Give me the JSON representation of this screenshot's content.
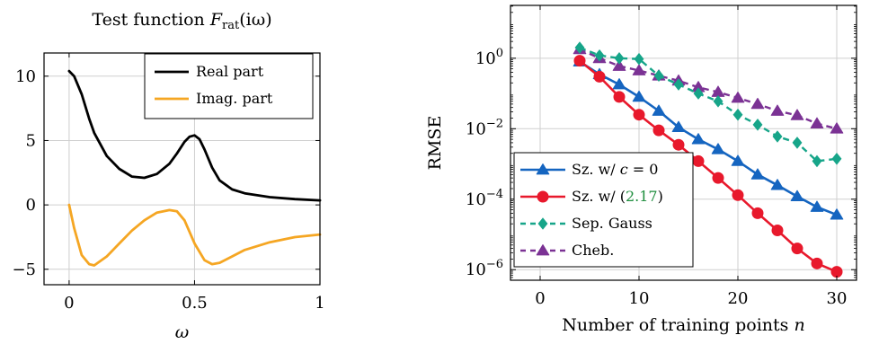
{
  "colors": {
    "real": "#000000",
    "imag": "#f5a623",
    "sz_c0": "#1565c0",
    "sz_217": "#e8192c",
    "sep_gauss": "#17a589",
    "cheb": "#7b3294",
    "ref_link": "#1e8e3e"
  },
  "chart_data": [
    {
      "type": "line",
      "title_prefix": "Test function ",
      "title_math": "F",
      "title_sub": "rat",
      "title_suffix": "(iω)",
      "xlabel": "ω",
      "xlim": [
        -0.1,
        1.0
      ],
      "ylim": [
        -6.2,
        11.8
      ],
      "xticks": [
        0,
        0.5,
        1
      ],
      "xtick_labels": [
        "0",
        "0.5",
        "1"
      ],
      "yticks": [
        -5,
        0,
        5,
        10
      ],
      "ytick_labels": [
        "−5",
        "0",
        "5",
        "10"
      ],
      "grid": true,
      "legend_position": "top-right",
      "series": [
        {
          "name": "Real part",
          "x": [
            0,
            0.02,
            0.05,
            0.08,
            0.1,
            0.15,
            0.2,
            0.25,
            0.3,
            0.35,
            0.4,
            0.43,
            0.46,
            0.48,
            0.5,
            0.52,
            0.54,
            0.57,
            0.6,
            0.65,
            0.7,
            0.8,
            0.9,
            1.0
          ],
          "y": [
            10.4,
            10.0,
            8.6,
            6.7,
            5.6,
            3.8,
            2.8,
            2.2,
            2.1,
            2.4,
            3.2,
            4.0,
            4.9,
            5.3,
            5.4,
            5.1,
            4.3,
            2.9,
            1.9,
            1.2,
            0.9,
            0.6,
            0.45,
            0.35
          ]
        },
        {
          "name": "Imag. part",
          "x": [
            0,
            0.02,
            0.05,
            0.08,
            0.1,
            0.15,
            0.2,
            0.25,
            0.3,
            0.35,
            0.4,
            0.43,
            0.46,
            0.5,
            0.54,
            0.57,
            0.6,
            0.65,
            0.7,
            0.8,
            0.9,
            1.0
          ],
          "y": [
            0,
            -1.8,
            -3.9,
            -4.6,
            -4.7,
            -4.0,
            -3.0,
            -2.0,
            -1.2,
            -0.6,
            -0.4,
            -0.5,
            -1.2,
            -3.0,
            -4.3,
            -4.6,
            -4.5,
            -4.0,
            -3.5,
            -2.9,
            -2.5,
            -2.3
          ]
        }
      ]
    },
    {
      "type": "line",
      "xlabel_prefix": "Number of training points ",
      "xlabel_math": "n",
      "ylabel": "RMSE",
      "xlim": [
        -3,
        32
      ],
      "ylim": [
        -6.3,
        1.5
      ],
      "yscale": "log",
      "xticks": [
        0,
        10,
        20,
        30
      ],
      "xtick_labels": [
        "0",
        "10",
        "20",
        "30"
      ],
      "yticks": [
        0,
        -2,
        -4,
        -6
      ],
      "ytick_labels": [
        "10^0",
        "10^-2",
        "10^-4",
        "10^-6"
      ],
      "grid": true,
      "legend_position": "bottom-left",
      "series": [
        {
          "name_prefix": "Sz. w/ ",
          "name_math": "c",
          "name_suffix": " = 0",
          "x": [
            4,
            6,
            8,
            10,
            12,
            14,
            16,
            18,
            20,
            22,
            24,
            26,
            28,
            30
          ],
          "y": [
            0.8,
            0.35,
            0.18,
            0.08,
            0.032,
            0.011,
            0.005,
            0.0026,
            0.0012,
            0.0005,
            0.00025,
            0.00012,
            6e-05,
            3.6e-05
          ]
        },
        {
          "name_prefix": "Sz. w/ (",
          "name_ref": "2.17",
          "name_suffix": ")",
          "x": [
            4,
            6,
            8,
            10,
            12,
            14,
            16,
            18,
            20,
            22,
            24,
            26,
            28,
            30
          ],
          "y": [
            0.85,
            0.3,
            0.08,
            0.025,
            0.009,
            0.0035,
            0.0012,
            0.0004,
            0.00013,
            4e-05,
            1.3e-05,
            4e-06,
            1.5e-06,
            8.7e-07
          ]
        },
        {
          "name": "Sep. Gauss",
          "x": [
            4,
            6,
            8,
            10,
            12,
            14,
            16,
            18,
            20,
            22,
            24,
            26,
            28,
            30
          ],
          "y": [
            2.0,
            1.2,
            1.0,
            0.95,
            0.32,
            0.18,
            0.1,
            0.06,
            0.025,
            0.013,
            0.006,
            0.004,
            0.0012,
            0.0014
          ]
        },
        {
          "name": "Cheb.",
          "x": [
            4,
            6,
            8,
            10,
            12,
            14,
            16,
            18,
            20,
            22,
            24,
            26,
            28,
            30
          ],
          "y": [
            1.8,
            1.0,
            0.6,
            0.45,
            0.32,
            0.23,
            0.15,
            0.11,
            0.075,
            0.05,
            0.032,
            0.024,
            0.014,
            0.01
          ]
        }
      ]
    }
  ]
}
